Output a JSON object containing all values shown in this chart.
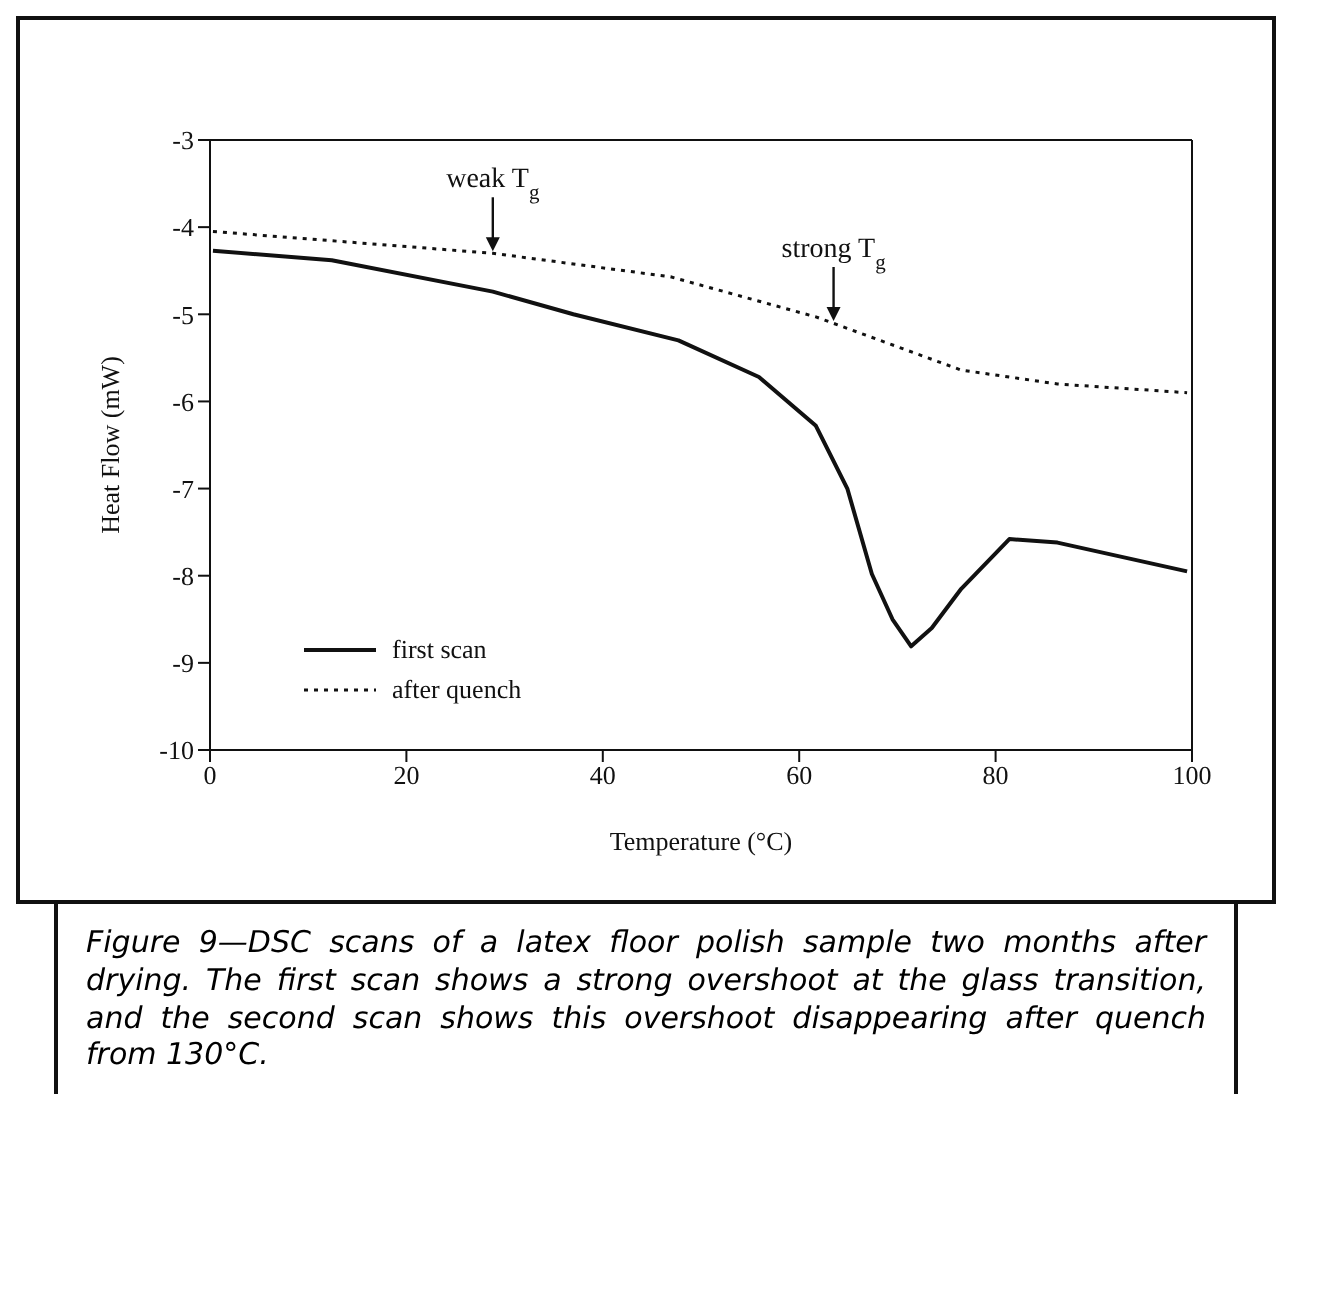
{
  "chart_data": {
    "type": "line",
    "xlabel": "Temperature (°C)",
    "ylabel": "Heat Flow (mW)",
    "xlim": [
      0,
      100
    ],
    "xticks": [
      0,
      20,
      40,
      60,
      80,
      100
    ],
    "ylim": [
      -10,
      -3
    ],
    "yticks": [
      -10,
      -9,
      -8,
      -7,
      -6,
      -5,
      -4,
      -3
    ],
    "series": [
      {
        "name": "first scan",
        "color": "#111111",
        "line_style": "solid",
        "x": [
          0.3,
          12.4,
          28.8,
          37,
          47.7,
          55.9,
          61.7,
          64.9,
          67.4,
          69.5,
          71.4,
          73.5,
          76.5,
          81.4,
          86.3,
          99.5
        ],
        "values": [
          -4.27,
          -4.38,
          -4.74,
          -5.0,
          -5.3,
          -5.72,
          -6.28,
          -7.0,
          -7.98,
          -8.5,
          -8.81,
          -8.6,
          -8.15,
          -7.58,
          -7.62,
          -7.95
        ]
      },
      {
        "name": "after quench",
        "color": "#111111",
        "line_style": "dotted",
        "x": [
          0.3,
          28.8,
          46.9,
          61.7,
          76.5,
          86.3,
          99.5
        ],
        "values": [
          -4.05,
          -4.3,
          -4.57,
          -5.03,
          -5.64,
          -5.8,
          -5.9
        ]
      }
    ],
    "annotations": [
      {
        "text": "weak T$_{g}$",
        "x": 28.8,
        "y": -4.3
      },
      {
        "text": "strong T$_{g}$",
        "x": 63.5,
        "y": -5.1
      },
      "Figure 9—DSC scans of a latex floor polish sample two months after drying. The first scan shows a strong overshoot at the glass transition, and the second scan shows this overshoot disappearing after quench from 130°C."
    ],
    "legend": "bottom left",
    "marker": "none"
  }
}
